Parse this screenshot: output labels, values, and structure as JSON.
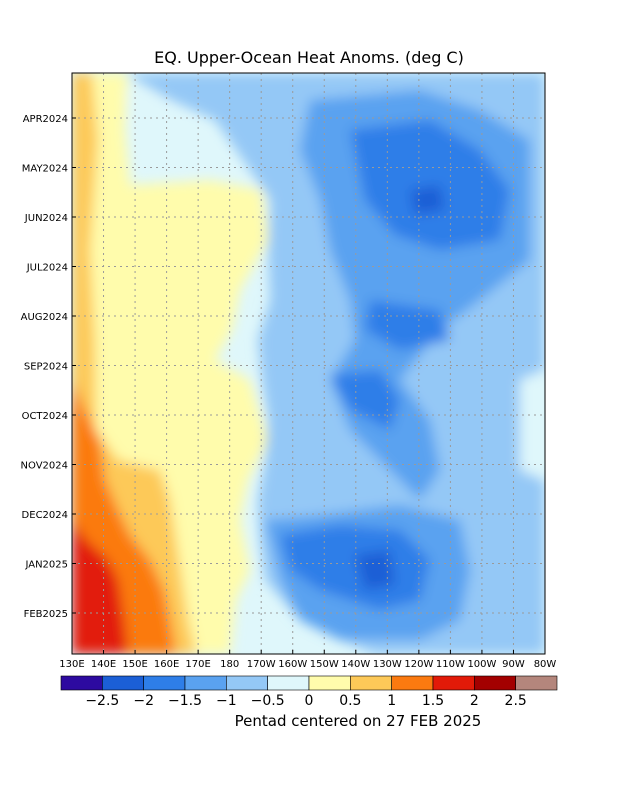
{
  "chart_data": {
    "type": "heatmap",
    "title": "EQ. Upper-Ocean Heat Anoms. (deg C)",
    "footer": "Pentad centered on 27 FEB 2025",
    "x_ticks": [
      "130E",
      "140E",
      "150E",
      "160E",
      "170E",
      "180",
      "170W",
      "160W",
      "150W",
      "140W",
      "130W",
      "120W",
      "110W",
      "100W",
      "90W",
      "80W"
    ],
    "y_ticks": [
      "APR2024",
      "MAY2024",
      "JUN2024",
      "JUL2024",
      "AUG2024",
      "SEP2024",
      "OCT2024",
      "NOV2024",
      "DEC2024",
      "JAN2025",
      "FEB2025"
    ],
    "grid": true,
    "colorbar_labels": [
      "-2.5",
      "-2",
      "-1.5",
      "-1",
      "-0.5",
      "0",
      "0.5",
      "1",
      "1.5",
      "2",
      "2.5"
    ],
    "colorbar_colors": [
      "#2d0aa0",
      "#1b5fd6",
      "#2e7ee8",
      "#5aa2f0",
      "#94c8f6",
      "#dff7fb",
      "#fffcac",
      "#fdc958",
      "#fb7a10",
      "#e21a08",
      "#a30000",
      "#b4867c"
    ]
  }
}
